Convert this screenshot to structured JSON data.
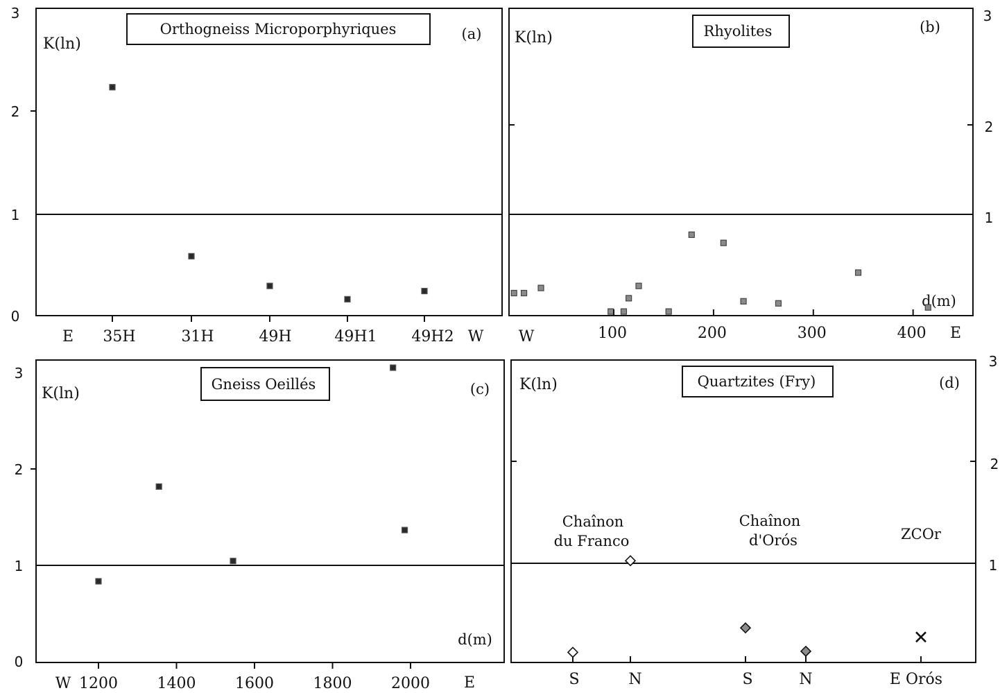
{
  "chart_data": [
    {
      "id": "a",
      "type": "scatter",
      "title": "Orthogneiss Microporphyriques",
      "panel_label": "(a)",
      "ylabel": "K(ln)",
      "ylim": [
        0,
        3
      ],
      "yticks": [
        "0",
        "1",
        "2",
        "3"
      ],
      "reference_line": 1,
      "categories": [
        "35H",
        "31H",
        "49H",
        "49H1",
        "49H2"
      ],
      "x_end_labels": [
        "E",
        "W"
      ],
      "values": [
        2.23,
        0.58,
        0.29,
        0.16,
        0.24
      ]
    },
    {
      "id": "b",
      "type": "scatter",
      "title": "Rhyolites",
      "panel_label": "(b)",
      "ylabel": "K(ln)",
      "xlabel": "d(m)",
      "ylim": [
        0,
        3
      ],
      "yticks": [
        "1",
        "2",
        "3"
      ],
      "xlim": [
        -5,
        460
      ],
      "xticks": [
        100,
        200,
        300,
        400
      ],
      "x_end_labels": [
        "W",
        "E"
      ],
      "reference_line": 1,
      "points": [
        {
          "x": 0,
          "y": 0.22
        },
        {
          "x": 10,
          "y": 0.22
        },
        {
          "x": 27,
          "y": 0.27
        },
        {
          "x": 97,
          "y": 0.04
        },
        {
          "x": 110,
          "y": 0.04
        },
        {
          "x": 115,
          "y": 0.17
        },
        {
          "x": 125,
          "y": 0.29
        },
        {
          "x": 155,
          "y": 0.04
        },
        {
          "x": 178,
          "y": 0.79
        },
        {
          "x": 210,
          "y": 0.71
        },
        {
          "x": 230,
          "y": 0.14
        },
        {
          "x": 265,
          "y": 0.12
        },
        {
          "x": 345,
          "y": 0.42
        },
        {
          "x": 415,
          "y": 0.08
        }
      ]
    },
    {
      "id": "c",
      "type": "scatter",
      "title": "Gneiss Oeillés",
      "panel_label": "(c)",
      "ylabel": "K(ln)",
      "xlabel": "d(m)",
      "ylim": [
        0,
        3
      ],
      "yticks": [
        "0",
        "1",
        "2",
        "3"
      ],
      "xlim": [
        1040,
        2240
      ],
      "xticks": [
        1200,
        1400,
        1600,
        1800,
        2000
      ],
      "x_end_labels": [
        "W",
        "E"
      ],
      "reference_line": 1,
      "points": [
        {
          "x": 1200,
          "y": 0.84
        },
        {
          "x": 1355,
          "y": 1.82
        },
        {
          "x": 1545,
          "y": 1.05
        },
        {
          "x": 1955,
          "y": 3.05
        },
        {
          "x": 1985,
          "y": 1.37
        }
      ]
    },
    {
      "id": "d",
      "type": "scatter",
      "title": "Quartzites (Fry)",
      "panel_label": "(d)",
      "ylabel": "K(ln)",
      "ylim": [
        0,
        3
      ],
      "yticks": [
        "1",
        "2",
        "3"
      ],
      "reference_line": 1,
      "categories": [
        "S",
        "N",
        "S",
        "N",
        "E Orós"
      ],
      "groups": [
        {
          "label_lines": [
            "Chaînon",
            "du Franco"
          ],
          "marker": "open-diamond"
        },
        {
          "label_lines": [
            "Chaînon",
            "d'Orós"
          ],
          "marker": "grey-diamond"
        },
        {
          "label_lines": [
            "ZCOr"
          ],
          "marker": "cross"
        }
      ],
      "points": [
        {
          "category": "S",
          "group": 0,
          "y": 0.1
        },
        {
          "category": "N",
          "group": 0,
          "y": 1.0
        },
        {
          "category": "S",
          "group": 1,
          "y": 0.34
        },
        {
          "category": "N",
          "group": 1,
          "y": 0.11
        },
        {
          "category": "E Orós",
          "group": 2,
          "y": 0.25
        }
      ]
    }
  ]
}
